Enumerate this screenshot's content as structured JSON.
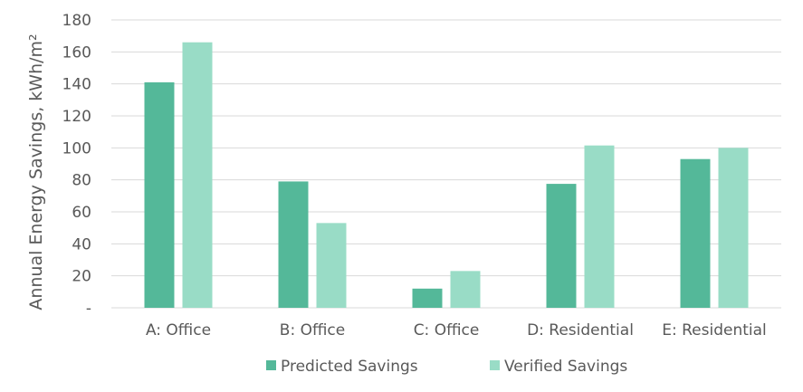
{
  "chart_data": {
    "type": "bar",
    "categories": [
      "A: Office",
      "B: Office",
      "C: Office",
      "D: Residential",
      "E: Residential"
    ],
    "series": [
      {
        "name": "Predicted Savings",
        "values": [
          141,
          79,
          12,
          77.5,
          93
        ]
      },
      {
        "name": "Verified Savings",
        "values": [
          166,
          53,
          23,
          101.5,
          100
        ]
      }
    ],
    "y_ticks": [
      "-",
      "20",
      "40",
      "60",
      "80",
      "100",
      "120",
      "140",
      "160",
      "180"
    ],
    "ylabel": "Annual Energy Savings, kWh/m²",
    "xlabel": "",
    "ylim": [
      0,
      180
    ],
    "grid": true,
    "legend_position": "bottom",
    "colors": {
      "predicted": "#54b899",
      "verified": "#99dcc6",
      "grid": "#d9d9d9",
      "text": "#595959"
    }
  }
}
